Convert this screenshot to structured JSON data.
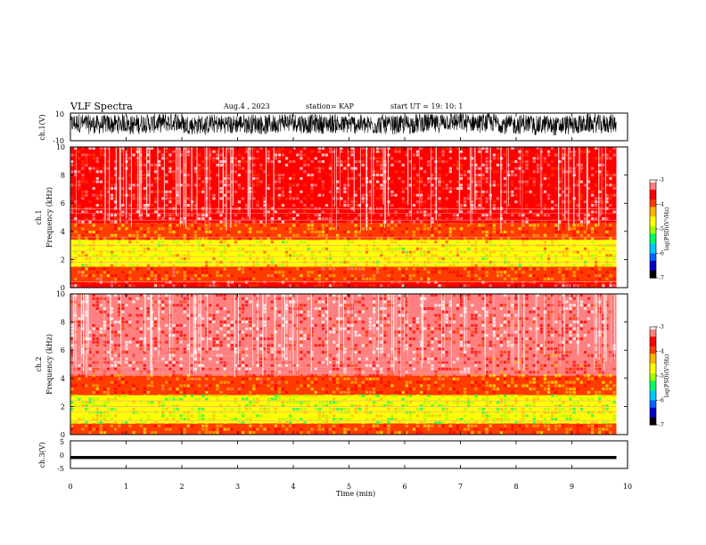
{
  "header": {
    "title": "VLF Spectra",
    "date": "Aug.4 , 2023",
    "station": "station= KAP",
    "start": "start UT = 19: 10: 1"
  },
  "colors": {
    "signal": "#000000",
    "axis": "#000000",
    "colormap": [
      "#000000",
      "#0000c8",
      "#0064ff",
      "#00c8ff",
      "#00ff64",
      "#a0ff00",
      "#ffff00",
      "#ffb400",
      "#ff3c00",
      "#ff0000",
      "#ff8080",
      "#ffffff"
    ]
  },
  "chart_data": [
    {
      "type": "line",
      "name": "ch1-waveform",
      "ylabel": "ch.1(V)",
      "ylim": [
        -10,
        10
      ],
      "yticks": [
        "10",
        "-10"
      ],
      "xlim": [
        0,
        10
      ],
      "note_shape": "dense noisy waveform spanning roughly -7 to +9 V over 0 to 9.8 min"
    },
    {
      "type": "heatmap",
      "name": "ch1-spectrogram",
      "ylabel": "ch.1 Frequency (kHz)",
      "ylim": [
        0,
        10
      ],
      "yticks": [
        "0",
        "2",
        "4",
        "6",
        "8",
        "10"
      ],
      "xlim": [
        0,
        10
      ],
      "colorbar": {
        "label": "log(PSD)(V²/Hz)",
        "range": [
          -7,
          -3
        ],
        "ticks": [
          "-3",
          "-4",
          "-5",
          "-6",
          "-7"
        ]
      },
      "bands": [
        {
          "f_low": 0,
          "f_high": 0.4,
          "level": -3.5
        },
        {
          "f_low": 0.4,
          "f_high": 1.5,
          "level": -3.9
        },
        {
          "f_low": 1.5,
          "f_high": 3.4,
          "level": -4.6
        },
        {
          "f_low": 3.4,
          "f_high": 4.6,
          "level": -4.0
        },
        {
          "f_low": 4.6,
          "f_high": 10,
          "level": -3.4
        }
      ],
      "lines_khz": [
        0.4,
        1.8,
        2.2,
        2.6,
        3.0,
        3.6,
        4.8,
        5.3,
        5.6
      ]
    },
    {
      "type": "heatmap",
      "name": "ch2-spectrogram",
      "ylabel": "ch.2 Frequency (kHz)",
      "ylim": [
        0,
        10
      ],
      "yticks": [
        "0",
        "2",
        "4",
        "6",
        "8",
        "10"
      ],
      "xlim": [
        0,
        10
      ],
      "colorbar": {
        "label": "log(PSD)(V²/Hz)",
        "range": [
          -7,
          -3
        ],
        "ticks": [
          "-3",
          "-4",
          "-5",
          "-6",
          "-7"
        ]
      },
      "bands": [
        {
          "f_low": 0,
          "f_high": 0.8,
          "level": -4.0
        },
        {
          "f_low": 0.8,
          "f_high": 2.8,
          "level": -4.8
        },
        {
          "f_low": 2.8,
          "f_high": 4.2,
          "level": -3.9
        },
        {
          "f_low": 4.2,
          "f_high": 10,
          "level": -3.3
        }
      ],
      "lines_khz": [
        1.0,
        1.6,
        2.0,
        2.4,
        4.4,
        4.8,
        5.2,
        5.6,
        6.2
      ],
      "transition_min": 7.45
    },
    {
      "type": "line",
      "name": "ch3-waveform",
      "ylabel": "ch.3(V)",
      "ylim": [
        -5,
        5
      ],
      "yticks": [
        "5",
        "0",
        "-5"
      ],
      "xlim": [
        0,
        10
      ],
      "note_shape": "narrow band near -1 V over 0 to 9.8 min"
    }
  ],
  "xaxis": {
    "label": "Time (min)",
    "ticks": [
      "0",
      "1",
      "2",
      "3",
      "4",
      "5",
      "6",
      "7",
      "8",
      "9",
      "10"
    ],
    "data_end_min": 9.8
  }
}
